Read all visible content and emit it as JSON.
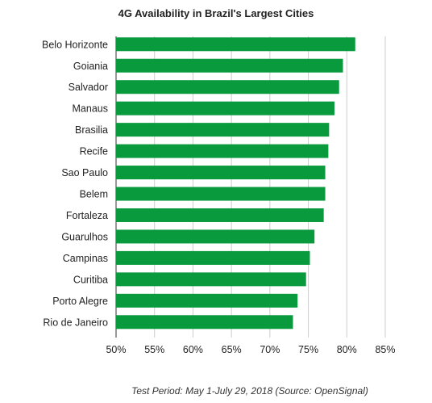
{
  "chart_data": {
    "type": "bar",
    "orientation": "horizontal",
    "title": "4G Availability in Brazil's Largest Cities",
    "footnote": "Test Period: May 1-July 29, 2018 (Source: OpenSignal)",
    "categories": [
      "Belo Horizonte",
      "Goiania",
      "Salvador",
      "Manaus",
      "Brasilia",
      "Recife",
      "Sao Paulo",
      "Belem",
      "Fortaleza",
      "Guarulhos",
      "Campinas",
      "Curitiba",
      "Porto Alegre",
      "Rio de Janeiro"
    ],
    "values": [
      81.1,
      79.5,
      79.0,
      78.4,
      77.7,
      77.6,
      77.2,
      77.2,
      77.0,
      75.8,
      75.2,
      74.7,
      73.6,
      73.0
    ],
    "unit": "%",
    "xlim": [
      50,
      85
    ],
    "xticks": [
      "50%",
      "55%",
      "60%",
      "65%",
      "70%",
      "75%",
      "80%",
      "85%"
    ],
    "grid": true,
    "bar_color": "#0a9a3e",
    "grid_color": "#cccccc"
  }
}
